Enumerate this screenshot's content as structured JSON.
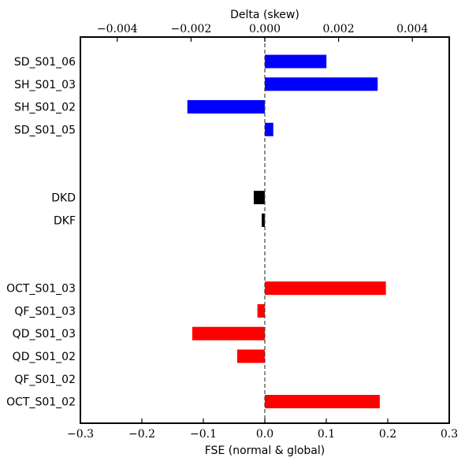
{
  "chart_data": {
    "type": "bar",
    "orientation": "horizontal",
    "xlabel": "FSE (normal & global)",
    "x2label": "Delta (skew)",
    "xlim": [
      -0.3,
      0.3
    ],
    "x2lim": [
      -0.005,
      0.005
    ],
    "x_ticks": [
      "−0.3",
      "−0.2",
      "−0.1",
      "0.0",
      "0.1",
      "0.2",
      "0.3"
    ],
    "x_tick_values": [
      -0.3,
      -0.2,
      -0.1,
      0.0,
      0.1,
      0.2,
      0.3
    ],
    "x2_ticks": [
      "−0.004",
      "−0.002",
      "0.000",
      "0.002",
      "0.004"
    ],
    "x2_tick_values": [
      -0.004,
      -0.002,
      0.0,
      0.002,
      0.004
    ],
    "zero_line": "dashed",
    "grid": false,
    "groups": [
      {
        "axis": "top",
        "color": "#0000ff",
        "bars": [
          {
            "label": "SD_S01_06",
            "value": 0.00167
          },
          {
            "label": "SH_S01_03",
            "value": 0.00306
          },
          {
            "label": "SH_S01_02",
            "value": -0.0021
          },
          {
            "label": "SD_S01_05",
            "value": 0.00023
          }
        ]
      },
      {
        "axis": "bottom",
        "color": "#000000",
        "bars": [
          {
            "label": "DKD",
            "value": -0.018
          },
          {
            "label": "DKF",
            "value": -0.005
          }
        ]
      },
      {
        "axis": "bottom",
        "color": "#ff0000",
        "bars": [
          {
            "label": "OCT_S01_03",
            "value": 0.197
          },
          {
            "label": "QF_S01_03",
            "value": -0.012
          },
          {
            "label": "QD_S01_03",
            "value": -0.118
          },
          {
            "label": "QD_S01_02",
            "value": -0.045
          },
          {
            "label": "QF_S01_02",
            "value": 0.0
          },
          {
            "label": "OCT_S01_02",
            "value": 0.187
          }
        ]
      }
    ]
  }
}
